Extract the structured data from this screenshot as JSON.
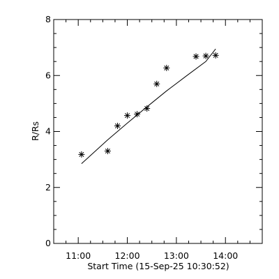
{
  "chart_data": {
    "type": "scatter",
    "title": "",
    "xlabel": "Start Time (15-Sep-25 10:30:52)",
    "ylabel": "R/Rs",
    "xlim": [
      "10:30",
      "14:45"
    ],
    "ylim": [
      0,
      8
    ],
    "x_ticks": [
      "11:00",
      "12:00",
      "13:00",
      "14:00"
    ],
    "y_ticks": [
      "0",
      "2",
      "4",
      "6",
      "8"
    ],
    "grid": false,
    "legend": "none",
    "series": [
      {
        "marker": "asterisk",
        "points": [
          {
            "x": "11:04",
            "y": 3.18
          },
          {
            "x": "11:36",
            "y": 3.3
          },
          {
            "x": "11:48",
            "y": 4.2
          },
          {
            "x": "12:00",
            "y": 4.57
          },
          {
            "x": "12:12",
            "y": 4.62
          },
          {
            "x": "12:24",
            "y": 4.82
          },
          {
            "x": "12:36",
            "y": 5.7
          },
          {
            "x": "12:48",
            "y": 6.27
          },
          {
            "x": "13:24",
            "y": 6.68
          },
          {
            "x": "13:36",
            "y": 6.7
          },
          {
            "x": "13:48",
            "y": 6.72
          }
        ]
      },
      {
        "style": "line",
        "points": [
          {
            "x": "11:04",
            "y": 2.85
          },
          {
            "x": "11:36",
            "y": 3.7
          },
          {
            "x": "12:00",
            "y": 4.3
          },
          {
            "x": "12:24",
            "y": 4.88
          },
          {
            "x": "12:48",
            "y": 5.45
          },
          {
            "x": "13:12",
            "y": 5.98
          },
          {
            "x": "13:36",
            "y": 6.5
          },
          {
            "x": "13:48",
            "y": 6.95
          }
        ]
      }
    ]
  }
}
